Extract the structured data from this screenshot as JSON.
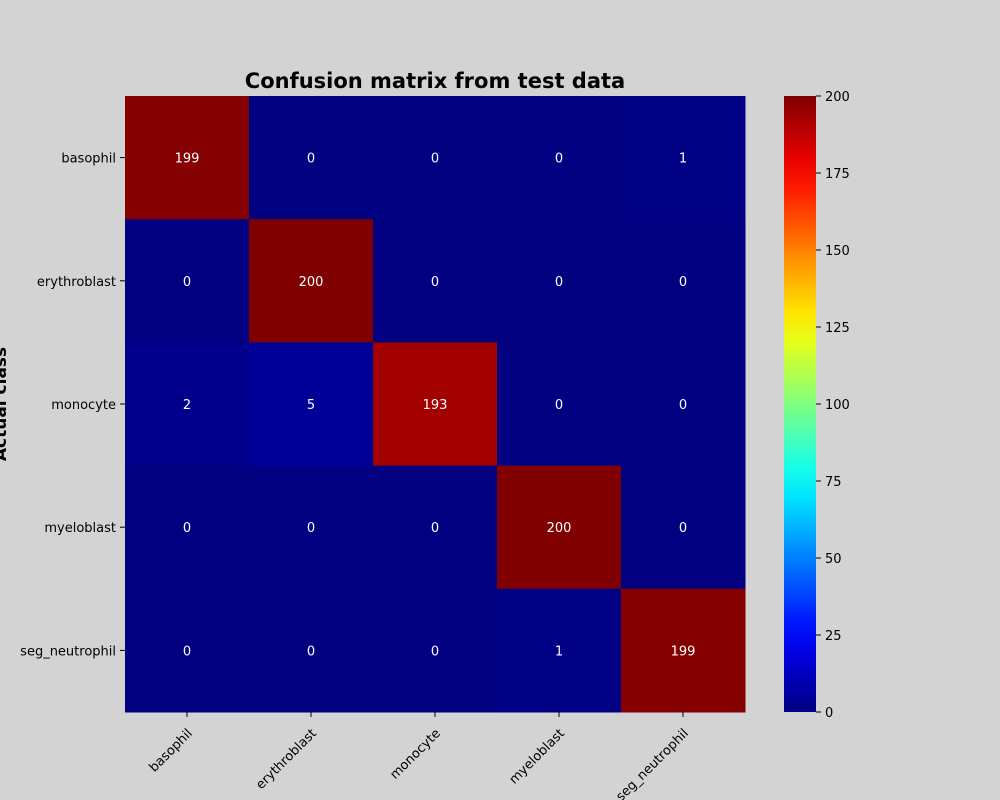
{
  "chart_data": {
    "type": "heatmap",
    "title": "Confusion matrix from test data",
    "ylabel": "Actual class",
    "xlabel": "",
    "row_labels": [
      "basophil",
      "erythroblast",
      "monocyte",
      "myeloblast",
      "seg_neutrophil"
    ],
    "col_labels": [
      "basophil",
      "erythroblast",
      "monocyte",
      "myeloblast",
      "seg_neutrophil"
    ],
    "values": [
      [
        199,
        0,
        0,
        0,
        1
      ],
      [
        0,
        200,
        0,
        0,
        0
      ],
      [
        2,
        5,
        193,
        0,
        0
      ],
      [
        0,
        0,
        0,
        200,
        0
      ],
      [
        0,
        0,
        0,
        1,
        199
      ]
    ],
    "colormap": "jet",
    "colorbar": {
      "range": [
        0,
        200
      ],
      "ticks": [
        0,
        25,
        50,
        75,
        100,
        125,
        150,
        175,
        200
      ]
    },
    "annotation_color": "#ffffff",
    "background_color": "#d3d3d3"
  }
}
